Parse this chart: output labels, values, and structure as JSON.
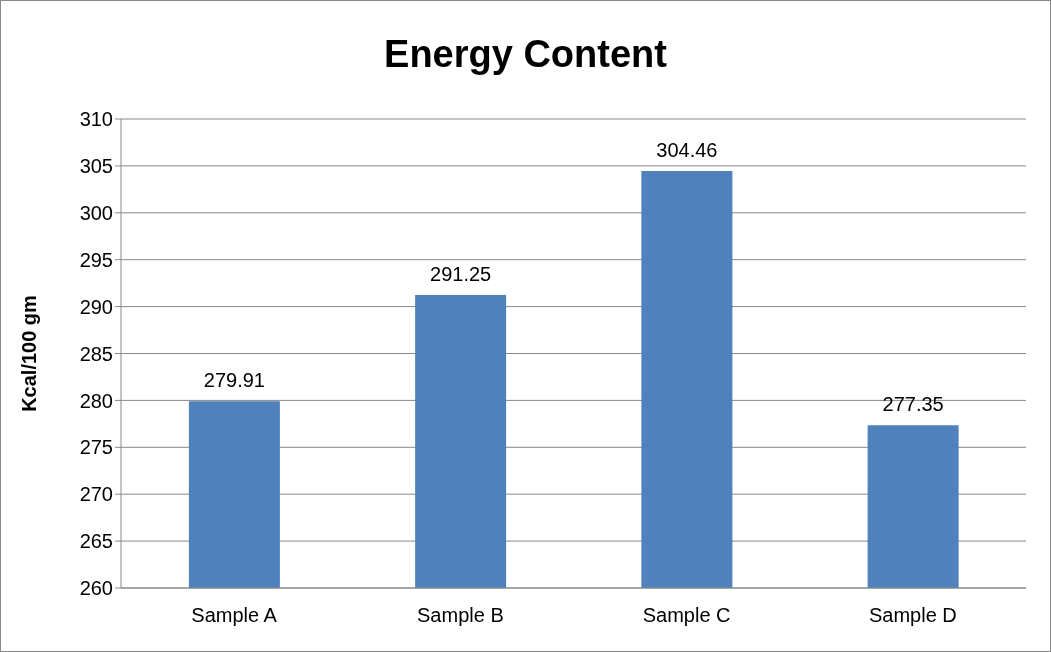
{
  "chart_data": {
    "type": "bar",
    "title": "Energy Content",
    "ylabel": "Kcal/100 gm",
    "categories": [
      "Sample A",
      "Sample B",
      "Sample C",
      "Sample D"
    ],
    "values": [
      279.91,
      291.25,
      304.46,
      277.35
    ],
    "color": "#4f81bd",
    "ylim": [
      260,
      310
    ],
    "yticks": [
      260,
      265,
      270,
      275,
      280,
      285,
      290,
      295,
      300,
      305,
      310
    ],
    "grid": "y",
    "data_labels": true
  }
}
